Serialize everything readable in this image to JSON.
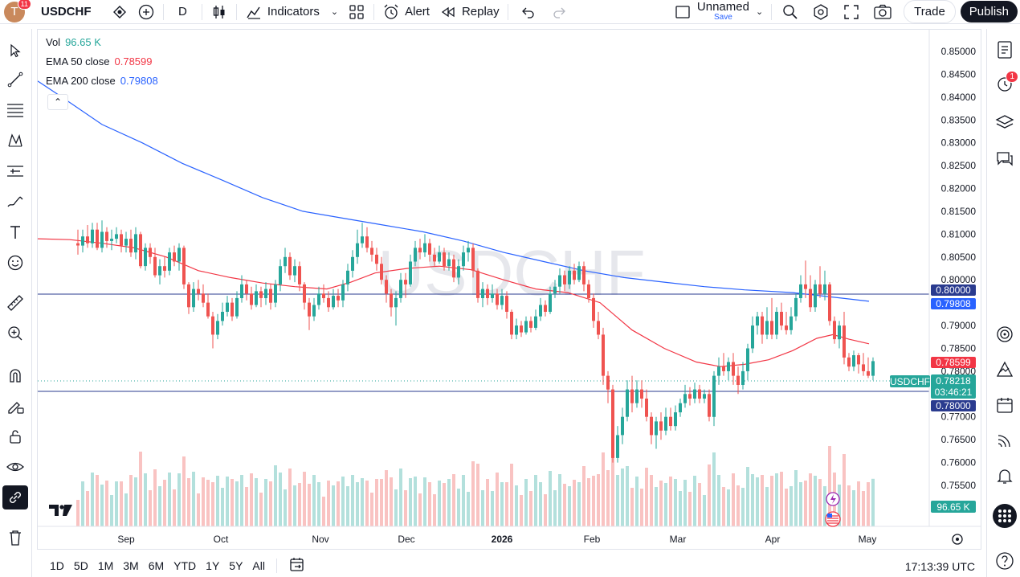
{
  "topbar": {
    "avatar_letter": "T",
    "notification_count": "11",
    "symbol": "USDCHF",
    "interval": "D",
    "indicators_label": "Indicators",
    "alert_label": "Alert",
    "replay_label": "Replay",
    "layout_name": "Unnamed",
    "layout_save": "Save",
    "trade_label": "Trade",
    "publish_label": "Publish"
  },
  "legend": {
    "vol_label": "Vol",
    "vol_value": "96.65 K",
    "ema50_label": "EMA 50 close",
    "ema50_value": "0.78599",
    "ema200_label": "EMA 200 close",
    "ema200_value": "0.79808"
  },
  "watermark": "USDCHF",
  "right_toolbar": {
    "alerts_badge": "1"
  },
  "price_axis": {
    "ticks": [
      "0.85000",
      "0.84500",
      "0.84000",
      "0.83500",
      "0.83000",
      "0.82500",
      "0.82000",
      "0.81500",
      "0.81000",
      "0.80500",
      "0.80000",
      "0.79500",
      "0.79000",
      "0.78500",
      "0.78000",
      "0.77500",
      "0.77000",
      "0.76500",
      "0.76000",
      "0.75500"
    ],
    "labels": {
      "level_upper": "0.80000",
      "ema200": "0.79808",
      "ema50": "0.78599",
      "symbol_tag": "USDCHF",
      "last_price": "0.78218",
      "countdown": "03:46:21",
      "level_lower": "0.78000",
      "volume": "96.65 K"
    }
  },
  "time_axis": {
    "labels": [
      "Sep",
      "Oct",
      "Nov",
      "Dec",
      "2026",
      "Feb",
      "Mar",
      "Apr",
      "May"
    ]
  },
  "bottombar": {
    "ranges": [
      "1D",
      "5D",
      "1M",
      "3M",
      "6M",
      "YTD",
      "1Y",
      "5Y",
      "All"
    ],
    "clock": "17:13:39 UTC"
  },
  "colors": {
    "up": "#26a69a",
    "down": "#ef5350",
    "ema50": "#f23645",
    "ema200": "#2962ff",
    "hline": "#2a3b8f",
    "accent": "#2962ff"
  },
  "chart_data": {
    "type": "candlestick",
    "symbol": "USDCHF",
    "interval": "D",
    "ylim": [
      0.7535,
      0.8515
    ],
    "x": [
      "Sep",
      "Oct",
      "Nov",
      "Dec",
      "2026",
      "Feb",
      "Mar",
      "Apr",
      "May"
    ],
    "horizontal_lines": [
      0.8,
      0.78
    ],
    "last_price": 0.78218,
    "ema50_last": 0.78599,
    "ema200_last": 0.79808,
    "volume_last": "96.65 K",
    "ema200_path": [
      [
        0,
        0.8435
      ],
      [
        30,
        0.84
      ],
      [
        80,
        0.834
      ],
      [
        130,
        0.83
      ],
      [
        180,
        0.8255
      ],
      [
        230,
        0.8218
      ],
      [
        280,
        0.818
      ],
      [
        330,
        0.815
      ],
      [
        380,
        0.8135
      ],
      [
        430,
        0.812
      ],
      [
        480,
        0.8105
      ],
      [
        530,
        0.8085
      ],
      [
        580,
        0.806
      ],
      [
        630,
        0.804
      ],
      [
        680,
        0.802
      ],
      [
        730,
        0.8005
      ],
      [
        780,
        0.7995
      ],
      [
        830,
        0.7985
      ],
      [
        880,
        0.7978
      ],
      [
        940,
        0.7972
      ],
      [
        1000,
        0.796
      ],
      [
        1035,
        0.7953
      ]
    ],
    "ema50_path": [
      [
        0,
        0.809
      ],
      [
        40,
        0.8088
      ],
      [
        80,
        0.808
      ],
      [
        120,
        0.807
      ],
      [
        160,
        0.805
      ],
      [
        200,
        0.802
      ],
      [
        240,
        0.8005
      ],
      [
        280,
        0.7993
      ],
      [
        320,
        0.7985
      ],
      [
        360,
        0.798
      ],
      [
        390,
        0.7995
      ],
      [
        420,
        0.8015
      ],
      [
        460,
        0.8025
      ],
      [
        500,
        0.803
      ],
      [
        540,
        0.8022
      ],
      [
        580,
        0.8
      ],
      [
        620,
        0.798
      ],
      [
        660,
        0.7972
      ],
      [
        700,
        0.795
      ],
      [
        740,
        0.789
      ],
      [
        780,
        0.785
      ],
      [
        820,
        0.782
      ],
      [
        850,
        0.781
      ],
      [
        880,
        0.7815
      ],
      [
        910,
        0.7825
      ],
      [
        940,
        0.7845
      ],
      [
        970,
        0.7872
      ],
      [
        990,
        0.788
      ],
      [
        1010,
        0.787
      ],
      [
        1035,
        0.786
      ]
    ],
    "candles": [
      [
        50,
        0.808,
        0.8075,
        0.811,
        0.8055
      ],
      [
        56,
        0.8075,
        0.8095,
        0.811,
        0.806
      ],
      [
        62,
        0.8095,
        0.808,
        0.812,
        0.807
      ],
      [
        68,
        0.808,
        0.811,
        0.8125,
        0.807
      ],
      [
        74,
        0.811,
        0.807,
        0.8125,
        0.8065
      ],
      [
        80,
        0.807,
        0.8105,
        0.813,
        0.806
      ],
      [
        86,
        0.8105,
        0.8085,
        0.8115,
        0.807
      ],
      [
        92,
        0.8085,
        0.809,
        0.811,
        0.8065
      ],
      [
        98,
        0.809,
        0.81,
        0.8115,
        0.808
      ],
      [
        104,
        0.81,
        0.8075,
        0.811,
        0.806
      ],
      [
        110,
        0.8075,
        0.809,
        0.8105,
        0.806
      ],
      [
        116,
        0.809,
        0.806,
        0.811,
        0.805
      ],
      [
        122,
        0.806,
        0.81,
        0.8115,
        0.8045
      ],
      [
        128,
        0.81,
        0.803,
        0.8105,
        0.8025
      ],
      [
        134,
        0.803,
        0.807,
        0.808,
        0.802
      ],
      [
        140,
        0.807,
        0.805,
        0.808,
        0.8035
      ],
      [
        146,
        0.805,
        0.801,
        0.807,
        0.8005
      ],
      [
        152,
        0.801,
        0.803,
        0.8045,
        0.799
      ],
      [
        158,
        0.803,
        0.802,
        0.805,
        0.8005
      ],
      [
        164,
        0.802,
        0.806,
        0.807,
        0.801
      ],
      [
        170,
        0.806,
        0.804,
        0.8075,
        0.803
      ],
      [
        176,
        0.804,
        0.807,
        0.808,
        0.802
      ],
      [
        182,
        0.807,
        0.799,
        0.8075,
        0.798
      ],
      [
        188,
        0.799,
        0.794,
        0.7995,
        0.7925
      ],
      [
        194,
        0.794,
        0.798,
        0.7995,
        0.793
      ],
      [
        200,
        0.798,
        0.797,
        0.8,
        0.7955
      ],
      [
        206,
        0.797,
        0.795,
        0.799,
        0.794
      ],
      [
        212,
        0.795,
        0.792,
        0.797,
        0.7915
      ],
      [
        218,
        0.792,
        0.788,
        0.793,
        0.785
      ],
      [
        224,
        0.788,
        0.791,
        0.7925,
        0.787
      ],
      [
        230,
        0.791,
        0.793,
        0.795,
        0.79
      ],
      [
        236,
        0.793,
        0.795,
        0.7965,
        0.792
      ],
      [
        242,
        0.795,
        0.792,
        0.796,
        0.791
      ],
      [
        248,
        0.792,
        0.796,
        0.7975,
        0.7915
      ],
      [
        254,
        0.796,
        0.799,
        0.801,
        0.795
      ],
      [
        260,
        0.799,
        0.797,
        0.8,
        0.7955
      ],
      [
        266,
        0.797,
        0.7945,
        0.7985,
        0.7935
      ],
      [
        272,
        0.7945,
        0.7975,
        0.799,
        0.794
      ],
      [
        278,
        0.7975,
        0.796,
        0.7985,
        0.794
      ],
      [
        284,
        0.796,
        0.798,
        0.7995,
        0.7945
      ],
      [
        290,
        0.798,
        0.795,
        0.799,
        0.7935
      ],
      [
        296,
        0.795,
        0.799,
        0.8,
        0.794
      ],
      [
        302,
        0.799,
        0.803,
        0.8045,
        0.7975
      ],
      [
        308,
        0.803,
        0.805,
        0.807,
        0.8015
      ],
      [
        314,
        0.805,
        0.801,
        0.806,
        0.8
      ],
      [
        320,
        0.801,
        0.803,
        0.8045,
        0.7995
      ],
      [
        326,
        0.803,
        0.799,
        0.804,
        0.7975
      ],
      [
        332,
        0.799,
        0.795,
        0.7995,
        0.7935
      ],
      [
        338,
        0.795,
        0.792,
        0.796,
        0.789
      ],
      [
        344,
        0.792,
        0.7945,
        0.796,
        0.791
      ],
      [
        350,
        0.7945,
        0.797,
        0.7985,
        0.7935
      ],
      [
        356,
        0.797,
        0.796,
        0.799,
        0.795
      ],
      [
        362,
        0.796,
        0.794,
        0.7975,
        0.793
      ],
      [
        368,
        0.794,
        0.7965,
        0.798,
        0.7935
      ],
      [
        374,
        0.7965,
        0.7955,
        0.798,
        0.794
      ],
      [
        380,
        0.7955,
        0.799,
        0.8,
        0.794
      ],
      [
        386,
        0.799,
        0.802,
        0.8035,
        0.7975
      ],
      [
        392,
        0.802,
        0.805,
        0.8065,
        0.8005
      ],
      [
        398,
        0.805,
        0.808,
        0.811,
        0.8035
      ],
      [
        404,
        0.808,
        0.8095,
        0.8125,
        0.807
      ],
      [
        410,
        0.8095,
        0.807,
        0.8115,
        0.806
      ],
      [
        416,
        0.807,
        0.8055,
        0.8085,
        0.804
      ],
      [
        422,
        0.8055,
        0.8035,
        0.807,
        0.802
      ],
      [
        428,
        0.8035,
        0.8,
        0.805,
        0.799
      ],
      [
        434,
        0.8,
        0.797,
        0.801,
        0.795
      ],
      [
        440,
        0.797,
        0.794,
        0.798,
        0.792
      ],
      [
        446,
        0.794,
        0.796,
        0.7975,
        0.79
      ],
      [
        452,
        0.796,
        0.8,
        0.8015,
        0.795
      ],
      [
        458,
        0.8,
        0.799,
        0.8015,
        0.796
      ],
      [
        464,
        0.799,
        0.804,
        0.8055,
        0.7985
      ],
      [
        470,
        0.804,
        0.807,
        0.8085,
        0.803
      ],
      [
        476,
        0.807,
        0.806,
        0.809,
        0.8045
      ],
      [
        482,
        0.806,
        0.808,
        0.81,
        0.805
      ],
      [
        488,
        0.808,
        0.8055,
        0.809,
        0.804
      ],
      [
        494,
        0.8055,
        0.804,
        0.807,
        0.803
      ],
      [
        500,
        0.804,
        0.806,
        0.8075,
        0.8035
      ],
      [
        506,
        0.806,
        0.803,
        0.807,
        0.802
      ],
      [
        512,
        0.803,
        0.8045,
        0.806,
        0.802
      ],
      [
        518,
        0.8045,
        0.8005,
        0.8055,
        0.7995
      ],
      [
        524,
        0.8005,
        0.803,
        0.8045,
        0.799
      ],
      [
        530,
        0.803,
        0.806,
        0.8075,
        0.802
      ],
      [
        536,
        0.806,
        0.807,
        0.8085,
        0.804
      ],
      [
        542,
        0.807,
        0.802,
        0.808,
        0.8005
      ],
      [
        548,
        0.802,
        0.796,
        0.8025,
        0.795
      ],
      [
        554,
        0.796,
        0.798,
        0.7995,
        0.794
      ],
      [
        560,
        0.798,
        0.796,
        0.799,
        0.7945
      ],
      [
        566,
        0.796,
        0.797,
        0.799,
        0.795
      ],
      [
        572,
        0.797,
        0.7945,
        0.798,
        0.7935
      ],
      [
        578,
        0.7945,
        0.7965,
        0.798,
        0.7935
      ],
      [
        584,
        0.7965,
        0.793,
        0.7975,
        0.7915
      ],
      [
        590,
        0.793,
        0.788,
        0.7935,
        0.787
      ],
      [
        596,
        0.788,
        0.79,
        0.7915,
        0.787
      ],
      [
        602,
        0.79,
        0.7885,
        0.791,
        0.7875
      ],
      [
        608,
        0.7885,
        0.791,
        0.792,
        0.788
      ],
      [
        614,
        0.791,
        0.7895,
        0.792,
        0.7885
      ],
      [
        620,
        0.7895,
        0.792,
        0.7935,
        0.789
      ],
      [
        626,
        0.792,
        0.7945,
        0.796,
        0.791
      ],
      [
        632,
        0.7945,
        0.793,
        0.7955,
        0.792
      ],
      [
        638,
        0.793,
        0.797,
        0.7985,
        0.7925
      ],
      [
        644,
        0.797,
        0.7985,
        0.8,
        0.796
      ],
      [
        650,
        0.7985,
        0.801,
        0.8025,
        0.797
      ],
      [
        656,
        0.801,
        0.799,
        0.802,
        0.7975
      ],
      [
        662,
        0.799,
        0.802,
        0.803,
        0.798
      ],
      [
        668,
        0.802,
        0.8,
        0.8035,
        0.799
      ],
      [
        674,
        0.8,
        0.803,
        0.804,
        0.7995
      ],
      [
        680,
        0.803,
        0.799,
        0.804,
        0.7975
      ],
      [
        686,
        0.799,
        0.796,
        0.8,
        0.795
      ],
      [
        692,
        0.796,
        0.791,
        0.797,
        0.7895
      ],
      [
        698,
        0.791,
        0.788,
        0.793,
        0.787
      ],
      [
        704,
        0.788,
        0.779,
        0.7895,
        0.777
      ],
      [
        710,
        0.779,
        0.776,
        0.78,
        0.773
      ],
      [
        716,
        0.776,
        0.761,
        0.777,
        0.76
      ],
      [
        722,
        0.761,
        0.766,
        0.768,
        0.76
      ],
      [
        728,
        0.766,
        0.77,
        0.772,
        0.764
      ],
      [
        734,
        0.77,
        0.776,
        0.778,
        0.769
      ],
      [
        740,
        0.776,
        0.773,
        0.779,
        0.771
      ],
      [
        746,
        0.773,
        0.776,
        0.778,
        0.772
      ],
      [
        752,
        0.776,
        0.774,
        0.778,
        0.772
      ],
      [
        758,
        0.774,
        0.77,
        0.776,
        0.769
      ],
      [
        764,
        0.77,
        0.766,
        0.771,
        0.764
      ],
      [
        770,
        0.766,
        0.769,
        0.77,
        0.763
      ],
      [
        776,
        0.769,
        0.767,
        0.771,
        0.765
      ],
      [
        782,
        0.767,
        0.77,
        0.772,
        0.766
      ],
      [
        788,
        0.77,
        0.768,
        0.772,
        0.767
      ],
      [
        794,
        0.768,
        0.771,
        0.7725,
        0.767
      ],
      [
        800,
        0.771,
        0.773,
        0.774,
        0.77
      ],
      [
        806,
        0.773,
        0.775,
        0.777,
        0.772
      ],
      [
        812,
        0.775,
        0.774,
        0.7765,
        0.7725
      ],
      [
        818,
        0.774,
        0.776,
        0.7775,
        0.773
      ],
      [
        824,
        0.776,
        0.774,
        0.777,
        0.773
      ],
      [
        830,
        0.774,
        0.775,
        0.776,
        0.773
      ],
      [
        836,
        0.775,
        0.77,
        0.776,
        0.769
      ],
      [
        842,
        0.77,
        0.779,
        0.78,
        0.768
      ],
      [
        848,
        0.779,
        0.781,
        0.783,
        0.777
      ],
      [
        854,
        0.781,
        0.78,
        0.784,
        0.779
      ],
      [
        860,
        0.78,
        0.782,
        0.783,
        0.778
      ],
      [
        866,
        0.782,
        0.779,
        0.784,
        0.777
      ],
      [
        872,
        0.779,
        0.777,
        0.781,
        0.775
      ],
      [
        878,
        0.777,
        0.78,
        0.782,
        0.776
      ],
      [
        884,
        0.78,
        0.785,
        0.786,
        0.778
      ],
      [
        890,
        0.785,
        0.79,
        0.792,
        0.784
      ],
      [
        896,
        0.79,
        0.792,
        0.793,
        0.788
      ],
      [
        902,
        0.792,
        0.788,
        0.793,
        0.786
      ],
      [
        908,
        0.788,
        0.791,
        0.794,
        0.787
      ],
      [
        914,
        0.791,
        0.788,
        0.796,
        0.787
      ],
      [
        920,
        0.788,
        0.793,
        0.794,
        0.787
      ],
      [
        926,
        0.793,
        0.79,
        0.795,
        0.789
      ],
      [
        932,
        0.79,
        0.789,
        0.793,
        0.788
      ],
      [
        938,
        0.789,
        0.792,
        0.794,
        0.788
      ],
      [
        944,
        0.792,
        0.796,
        0.797,
        0.791
      ],
      [
        950,
        0.796,
        0.799,
        0.801,
        0.795
      ],
      [
        956,
        0.799,
        0.798,
        0.8042,
        0.796
      ],
      [
        962,
        0.798,
        0.794,
        0.801,
        0.793
      ],
      [
        968,
        0.794,
        0.799,
        0.8,
        0.793
      ],
      [
        974,
        0.799,
        0.797,
        0.803,
        0.796
      ],
      [
        980,
        0.797,
        0.799,
        0.802,
        0.7955
      ],
      [
        986,
        0.799,
        0.791,
        0.7995,
        0.79
      ],
      [
        992,
        0.791,
        0.787,
        0.792,
        0.786
      ],
      [
        998,
        0.787,
        0.79,
        0.791,
        0.785
      ],
      [
        1004,
        0.79,
        0.783,
        0.793,
        0.7815
      ],
      [
        1010,
        0.783,
        0.781,
        0.784,
        0.78
      ],
      [
        1016,
        0.781,
        0.7835,
        0.7845,
        0.78
      ],
      [
        1022,
        0.7835,
        0.7815,
        0.784,
        0.7795
      ],
      [
        1028,
        0.7815,
        0.78,
        0.784,
        0.779
      ],
      [
        1034,
        0.78,
        0.779,
        0.783,
        0.7785
      ],
      [
        1040,
        0.779,
        0.7822,
        0.783,
        0.778
      ]
    ]
  }
}
